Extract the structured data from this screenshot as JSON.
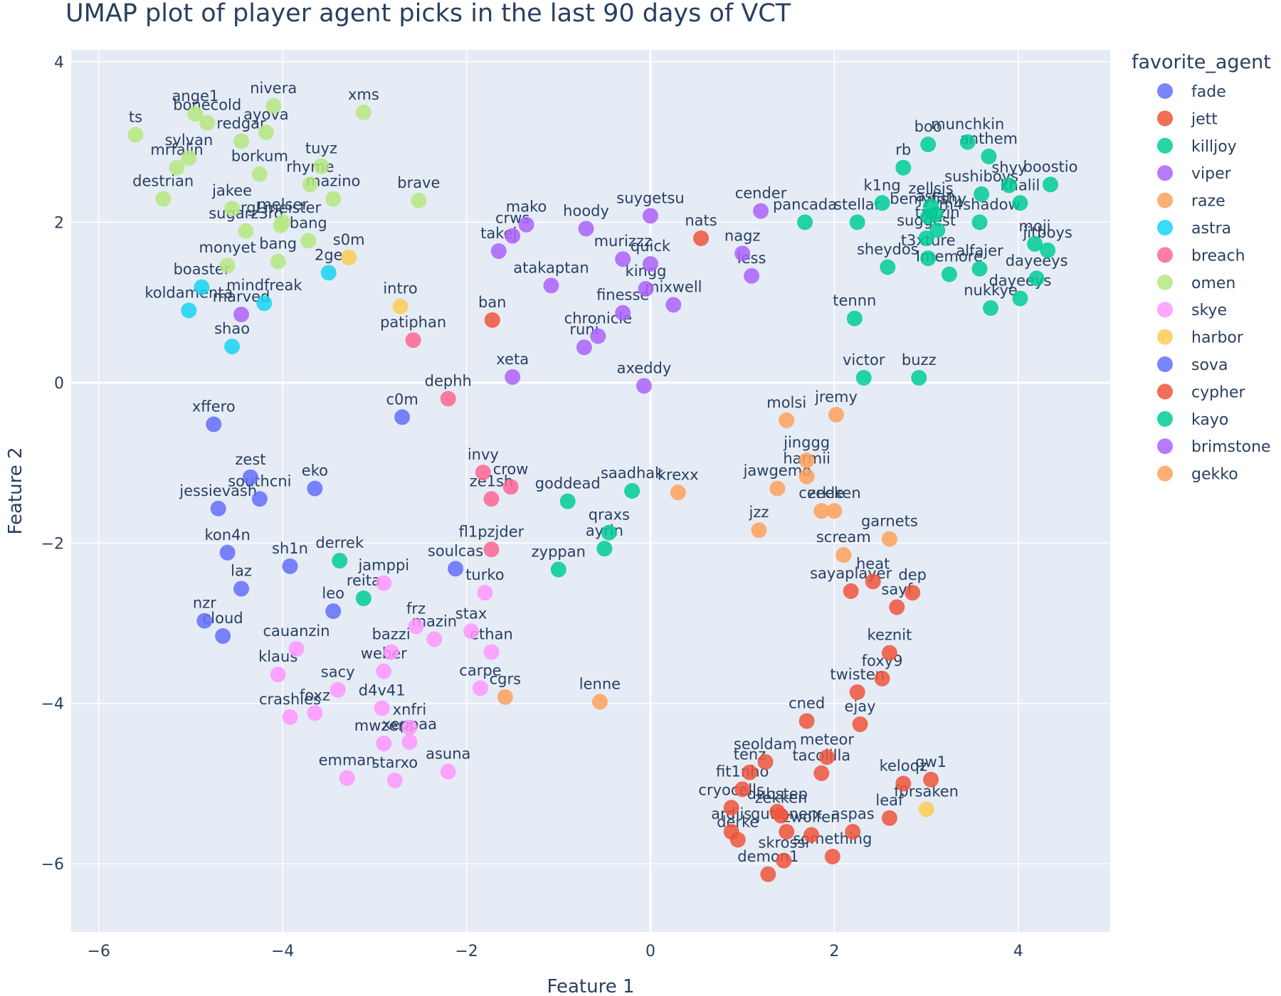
{
  "chart_data": {
    "type": "scatter",
    "title": "UMAP plot of player agent picks in the last 90 days of VCT",
    "xlabel": "Feature 1",
    "ylabel": "Feature 2",
    "xlim": [
      -6.3,
      5.0
    ],
    "ylim": [
      -6.85,
      4.15
    ],
    "xticks": [
      -6,
      -4,
      -2,
      0,
      2,
      4
    ],
    "yticks": [
      -6,
      -4,
      -2,
      0,
      2,
      4
    ],
    "grid": true,
    "legend": {
      "title": "favorite_agent",
      "position": "right"
    },
    "colors": {
      "fade": "#636efa",
      "jett": "#EF553B",
      "killjoy": "#00cc96",
      "viper": "#ab63fa",
      "raze": "#FFA15A",
      "astra": "#19d3f3",
      "breach": "#FF6692",
      "omen": "#B6E880",
      "skye": "#FF97FF",
      "harbor": "#FECB52",
      "sova": "#636efa",
      "cypher": "#EF553B",
      "kayo": "#00cc96",
      "brimstone": "#ab63fa",
      "gekko": "#FFA15A"
    },
    "series": [
      {
        "name": "fade",
        "points": [
          {
            "label": "xffero",
            "x": -4.75,
            "y": -0.52
          },
          {
            "label": "zest",
            "x": -4.35,
            "y": -1.18
          },
          {
            "label": "southcni",
            "x": -4.25,
            "y": -1.45
          },
          {
            "label": "eko",
            "x": -3.65,
            "y": -1.32
          },
          {
            "label": "jessievash",
            "x": -4.7,
            "y": -1.57
          },
          {
            "label": "kon4n",
            "x": -4.6,
            "y": -2.12
          },
          {
            "label": "sh1n",
            "x": -3.92,
            "y": -2.29
          },
          {
            "label": "laz",
            "x": -4.45,
            "y": -2.57
          },
          {
            "label": "leo",
            "x": -3.45,
            "y": -2.85
          },
          {
            "label": "nzr",
            "x": -4.85,
            "y": -2.97
          },
          {
            "label": "cloud",
            "x": -4.65,
            "y": -3.16
          },
          {
            "label": "soulcas",
            "x": -2.12,
            "y": -2.32
          },
          {
            "label": "c0m",
            "x": -2.7,
            "y": -0.43
          }
        ]
      },
      {
        "name": "jett",
        "points": [
          {
            "label": "ban",
            "x": -1.72,
            "y": 0.78
          },
          {
            "label": "nats",
            "x": 0.55,
            "y": 1.8
          }
        ]
      },
      {
        "name": "killjoy",
        "points": [
          {
            "label": "goddead",
            "x": -0.9,
            "y": -1.48
          },
          {
            "label": "saadhak",
            "x": -0.2,
            "y": -1.35
          },
          {
            "label": "qraxs",
            "x": -0.45,
            "y": -1.87
          },
          {
            "label": "ayrin",
            "x": -0.5,
            "y": -2.07
          },
          {
            "label": "zyppan",
            "x": -1.0,
            "y": -2.33
          },
          {
            "label": "derrek",
            "x": -3.38,
            "y": -2.22
          },
          {
            "label": "reita",
            "x": -3.12,
            "y": -2.69
          }
        ]
      },
      {
        "name": "viper",
        "points": [
          {
            "label": "mako",
            "x": -1.35,
            "y": 1.97
          },
          {
            "label": "crws",
            "x": -1.5,
            "y": 1.83
          },
          {
            "label": "takej",
            "x": -1.65,
            "y": 1.64
          },
          {
            "label": "hoody",
            "x": -0.7,
            "y": 1.92
          },
          {
            "label": "suygetsu",
            "x": 0.0,
            "y": 2.08
          },
          {
            "label": "murizzz",
            "x": -0.3,
            "y": 1.54
          },
          {
            "label": "quick",
            "x": 0.0,
            "y": 1.48
          },
          {
            "label": "atakaptan",
            "x": -1.08,
            "y": 1.21
          },
          {
            "label": "kingg",
            "x": -0.05,
            "y": 1.17
          },
          {
            "label": "finesse",
            "x": -0.3,
            "y": 0.87
          },
          {
            "label": "mixwell",
            "x": 0.25,
            "y": 0.97
          },
          {
            "label": "chronicle",
            "x": -0.57,
            "y": 0.58
          },
          {
            "label": "runi",
            "x": -0.72,
            "y": 0.44
          },
          {
            "label": "xeta",
            "x": -1.5,
            "y": 0.07
          },
          {
            "label": "axeddy",
            "x": -0.07,
            "y": -0.04
          },
          {
            "label": "cender",
            "x": 1.2,
            "y": 2.14
          },
          {
            "label": "nagz",
            "x": 1.0,
            "y": 1.61
          },
          {
            "label": "less",
            "x": 1.1,
            "y": 1.33
          },
          {
            "label": "marved",
            "x": -4.45,
            "y": 0.85
          }
        ]
      },
      {
        "name": "raze",
        "points": [
          {
            "label": "molsi",
            "x": 1.48,
            "y": -0.47
          },
          {
            "label": "jremy",
            "x": 2.02,
            "y": -0.4
          },
          {
            "label": "jinggg",
            "x": 1.7,
            "y": -0.97
          },
          {
            "label": "harmii",
            "x": 1.7,
            "y": -1.17
          },
          {
            "label": "jawgemo",
            "x": 1.38,
            "y": -1.32
          },
          {
            "label": "cerkle",
            "x": 1.86,
            "y": -1.6
          },
          {
            "label": "zeeken",
            "x": 2.0,
            "y": -1.6
          },
          {
            "label": "jzz",
            "x": 1.18,
            "y": -1.84
          },
          {
            "label": "garnets",
            "x": 2.6,
            "y": -1.95
          },
          {
            "label": "scream",
            "x": 2.1,
            "y": -2.15
          },
          {
            "label": "krexx",
            "x": 0.3,
            "y": -1.37
          },
          {
            "label": "lenne",
            "x": -0.55,
            "y": -3.98
          },
          {
            "label": "cgrs",
            "x": -1.58,
            "y": -3.92
          }
        ]
      },
      {
        "name": "astra",
        "points": [
          {
            "label": "2ge",
            "x": -3.5,
            "y": 1.37
          },
          {
            "label": "boaster",
            "x": -4.88,
            "y": 1.19
          },
          {
            "label": "mindfreak",
            "x": -4.2,
            "y": 0.99
          },
          {
            "label": "koldamenta",
            "x": -5.02,
            "y": 0.9
          },
          {
            "label": "shao",
            "x": -4.55,
            "y": 0.45
          }
        ]
      },
      {
        "name": "breach",
        "points": [
          {
            "label": "patiphan",
            "x": -2.58,
            "y": 0.53
          },
          {
            "label": "dephh",
            "x": -2.2,
            "y": -0.2
          },
          {
            "label": "invy",
            "x": -1.82,
            "y": -1.12
          },
          {
            "label": "crow",
            "x": -1.52,
            "y": -1.3
          },
          {
            "label": "ze1sh",
            "x": -1.73,
            "y": -1.45
          },
          {
            "label": "fl1pzjder",
            "x": -1.73,
            "y": -2.08
          }
        ]
      },
      {
        "name": "omen",
        "points": [
          {
            "label": "ts",
            "x": -5.6,
            "y": 3.09
          },
          {
            "label": "ange1",
            "x": -4.95,
            "y": 3.35
          },
          {
            "label": "bonecold",
            "x": -4.82,
            "y": 3.24
          },
          {
            "label": "nivera",
            "x": -4.1,
            "y": 3.45
          },
          {
            "label": "xms",
            "x": -3.12,
            "y": 3.37
          },
          {
            "label": "redgar",
            "x": -4.45,
            "y": 3.01
          },
          {
            "label": "ayova",
            "x": -4.18,
            "y": 3.12
          },
          {
            "label": "sylvan",
            "x": -5.02,
            "y": 2.8
          },
          {
            "label": "mrfalin",
            "x": -5.15,
            "y": 2.68
          },
          {
            "label": "borkum",
            "x": -4.25,
            "y": 2.6
          },
          {
            "label": "tuyz",
            "x": -3.58,
            "y": 2.7
          },
          {
            "label": "rhyme",
            "x": -3.7,
            "y": 2.47
          },
          {
            "label": "destrian",
            "x": -5.3,
            "y": 2.29
          },
          {
            "label": "mazino",
            "x": -3.45,
            "y": 2.29
          },
          {
            "label": "brave",
            "x": -2.52,
            "y": 2.27
          },
          {
            "label": "jakee",
            "x": -4.55,
            "y": 2.17
          },
          {
            "label": "melser",
            "x": -4.0,
            "y": 2.0
          },
          {
            "label": "rgLmeister",
            "x": -4.02,
            "y": 1.96
          },
          {
            "label": "sugarz3ro",
            "x": -4.4,
            "y": 1.89
          },
          {
            "label": "bang",
            "x": -3.72,
            "y": 1.77
          },
          {
            "label": "monyet",
            "x": -4.6,
            "y": 1.46
          },
          {
            "label": "bang",
            "x": -4.05,
            "y": 1.51
          }
        ]
      },
      {
        "name": "skye",
        "points": [
          {
            "label": "jamppi",
            "x": -2.9,
            "y": -2.5
          },
          {
            "label": "turko",
            "x": -1.8,
            "y": -2.62
          },
          {
            "label": "frz",
            "x": -2.55,
            "y": -3.04
          },
          {
            "label": "mazin",
            "x": -2.35,
            "y": -3.2
          },
          {
            "label": "stax",
            "x": -1.95,
            "y": -3.1
          },
          {
            "label": "ethan",
            "x": -1.73,
            "y": -3.36
          },
          {
            "label": "cauanzin",
            "x": -3.85,
            "y": -3.32
          },
          {
            "label": "bazzi",
            "x": -2.82,
            "y": -3.36
          },
          {
            "label": "weber",
            "x": -2.9,
            "y": -3.6
          },
          {
            "label": "klaus",
            "x": -4.05,
            "y": -3.64
          },
          {
            "label": "sacy",
            "x": -3.4,
            "y": -3.83
          },
          {
            "label": "carpe",
            "x": -1.85,
            "y": -3.81
          },
          {
            "label": "d4v41",
            "x": -2.92,
            "y": -4.06
          },
          {
            "label": "crashies",
            "x": -3.92,
            "y": -4.17
          },
          {
            "label": "foxz",
            "x": -3.65,
            "y": -4.12
          },
          {
            "label": "xnfri",
            "x": -2.62,
            "y": -4.3
          },
          {
            "label": "mwzera",
            "x": -2.9,
            "y": -4.5
          },
          {
            "label": "xeppaa",
            "x": -2.62,
            "y": -4.48
          },
          {
            "label": "emman",
            "x": -3.3,
            "y": -4.93
          },
          {
            "label": "starxo",
            "x": -2.78,
            "y": -4.96
          },
          {
            "label": "asuna",
            "x": -2.2,
            "y": -4.85
          }
        ]
      },
      {
        "name": "harbor",
        "points": [
          {
            "label": "s0m",
            "x": -3.28,
            "y": 1.56
          },
          {
            "label": "intro",
            "x": -2.72,
            "y": 0.95
          },
          {
            "label": "f0rsaken",
            "x": 3.0,
            "y": -5.32
          }
        ]
      },
      {
        "name": "sova",
        "points": []
      },
      {
        "name": "cypher",
        "points": [
          {
            "label": "sayaplayer",
            "x": 2.18,
            "y": -2.6
          },
          {
            "label": "heat",
            "x": 2.42,
            "y": -2.48
          },
          {
            "label": "dep",
            "x": 2.85,
            "y": -2.62
          },
          {
            "label": "sayf",
            "x": 2.68,
            "y": -2.8
          },
          {
            "label": "keznit",
            "x": 2.6,
            "y": -3.37
          },
          {
            "label": "foxy9",
            "x": 2.52,
            "y": -3.69
          },
          {
            "label": "twisten",
            "x": 2.25,
            "y": -3.86
          },
          {
            "label": "cned",
            "x": 1.7,
            "y": -4.22
          },
          {
            "label": "ejay",
            "x": 2.28,
            "y": -4.26
          },
          {
            "label": "meteor",
            "x": 1.92,
            "y": -4.67
          },
          {
            "label": "seoldam",
            "x": 1.25,
            "y": -4.73
          },
          {
            "label": "tenz",
            "x": 1.08,
            "y": -4.86
          },
          {
            "label": "tacolilla",
            "x": 1.86,
            "y": -4.87
          },
          {
            "label": "fit1nho",
            "x": 1.0,
            "y": -5.07
          },
          {
            "label": "qw1",
            "x": 3.05,
            "y": -4.95
          },
          {
            "label": "keloqz",
            "x": 2.75,
            "y": -5.0
          },
          {
            "label": "cryocells",
            "x": 0.88,
            "y": -5.3
          },
          {
            "label": "dubstep",
            "x": 1.38,
            "y": -5.35
          },
          {
            "label": "zekken",
            "x": 1.42,
            "y": -5.4
          },
          {
            "label": "leaf",
            "x": 2.6,
            "y": -5.43
          },
          {
            "label": "ardiis",
            "x": 0.88,
            "y": -5.6
          },
          {
            "label": "derke",
            "x": 0.95,
            "y": -5.7
          },
          {
            "label": "qutionerx",
            "x": 1.48,
            "y": -5.6
          },
          {
            "label": "zwolfen",
            "x": 1.75,
            "y": -5.64
          },
          {
            "label": "aspas",
            "x": 2.2,
            "y": -5.6
          },
          {
            "label": "skrossi",
            "x": 1.45,
            "y": -5.96
          },
          {
            "label": "something",
            "x": 1.98,
            "y": -5.91
          },
          {
            "label": "demon1",
            "x": 1.28,
            "y": -6.13
          }
        ]
      },
      {
        "name": "kayo",
        "points": [
          {
            "label": "boo",
            "x": 3.02,
            "y": 2.97
          },
          {
            "label": "munchkin",
            "x": 3.45,
            "y": 3.0
          },
          {
            "label": "anthem",
            "x": 3.68,
            "y": 2.82
          },
          {
            "label": "rb",
            "x": 2.75,
            "y": 2.68
          },
          {
            "label": "boostio",
            "x": 4.35,
            "y": 2.47
          },
          {
            "label": "shyy",
            "x": 3.9,
            "y": 2.46
          },
          {
            "label": "khalil",
            "x": 4.02,
            "y": 2.24
          },
          {
            "label": "sushiboys",
            "x": 3.6,
            "y": 2.35
          },
          {
            "label": "zellsis",
            "x": 3.05,
            "y": 2.2
          },
          {
            "label": "k1ng",
            "x": 2.52,
            "y": 2.24
          },
          {
            "label": "stellar",
            "x": 2.25,
            "y": 2.0
          },
          {
            "label": "pancada",
            "x": 1.68,
            "y": 2.0
          },
          {
            "label": "benjyfishy",
            "x": 3.02,
            "y": 2.07
          },
          {
            "label": "aslan",
            "x": 3.1,
            "y": 2.1
          },
          {
            "label": "m4shadow",
            "x": 3.58,
            "y": 2.0
          },
          {
            "label": "txozin",
            "x": 3.12,
            "y": 1.9
          },
          {
            "label": "moji",
            "x": 4.18,
            "y": 1.73
          },
          {
            "label": "jitboys",
            "x": 4.32,
            "y": 1.65
          },
          {
            "label": "suggest",
            "x": 3.0,
            "y": 1.8
          },
          {
            "label": "sheydos",
            "x": 2.58,
            "y": 1.44
          },
          {
            "label": "t3xture",
            "x": 3.02,
            "y": 1.55
          },
          {
            "label": "Imemore",
            "x": 3.25,
            "y": 1.35
          },
          {
            "label": "alfajer",
            "x": 3.58,
            "y": 1.42
          },
          {
            "label": "dayeeys",
            "x": 4.2,
            "y": 1.3
          },
          {
            "label": "nukkye",
            "x": 3.7,
            "y": 0.93
          },
          {
            "label": "tennn",
            "x": 2.22,
            "y": 0.8
          },
          {
            "label": "dayeeys",
            "x": 4.02,
            "y": 1.05
          },
          {
            "label": "victor",
            "x": 2.32,
            "y": 0.06
          },
          {
            "label": "buzz",
            "x": 2.92,
            "y": 0.06
          }
        ]
      },
      {
        "name": "brimstone",
        "points": []
      },
      {
        "name": "gekko",
        "points": []
      }
    ]
  }
}
